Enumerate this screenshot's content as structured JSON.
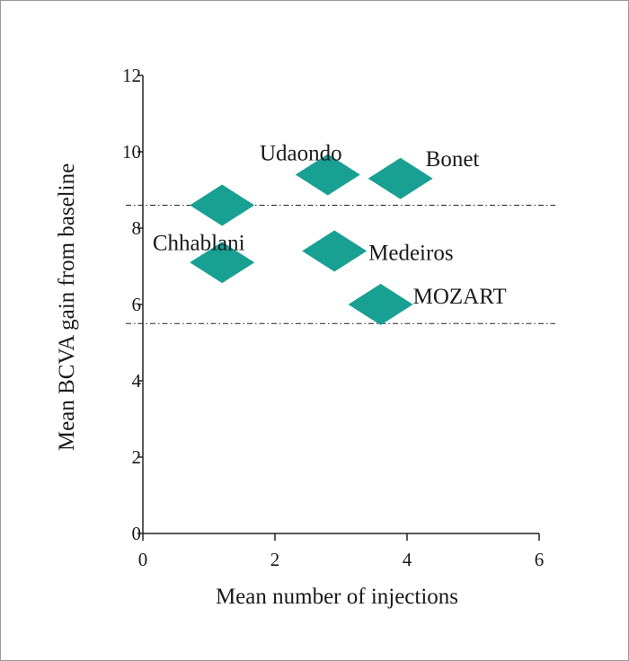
{
  "chart_data": {
    "type": "scatter",
    "xlabel": "Mean number of injections",
    "ylabel": "Mean BCVA gain from baseline",
    "xlim": [
      0,
      6
    ],
    "ylim": [
      0,
      12
    ],
    "xticks": [
      "0",
      "2",
      "4",
      "6"
    ],
    "yticks": [
      "0",
      "2",
      "4",
      "6",
      "8",
      "10",
      "12"
    ],
    "xtick_values": [
      0,
      2,
      4,
      6
    ],
    "ytick_values": [
      0,
      2,
      4,
      6,
      8,
      10,
      12
    ],
    "marker": "diamond",
    "marker_color": "#18a093",
    "reference_lines": [
      {
        "y": 8.6,
        "style": "dash-dot"
      },
      {
        "y": 5.5,
        "style": "dash-dot"
      }
    ],
    "points": [
      {
        "x": 1.2,
        "y": 8.6,
        "label": ""
      },
      {
        "x": 1.2,
        "y": 7.1,
        "label": "Chhablani"
      },
      {
        "x": 2.8,
        "y": 9.4,
        "label": "Udaondo"
      },
      {
        "x": 3.9,
        "y": 9.3,
        "label": "Bonet"
      },
      {
        "x": 2.9,
        "y": 7.4,
        "label": "Medeiros"
      },
      {
        "x": 3.6,
        "y": 6.0,
        "label": "MOZART"
      }
    ]
  }
}
